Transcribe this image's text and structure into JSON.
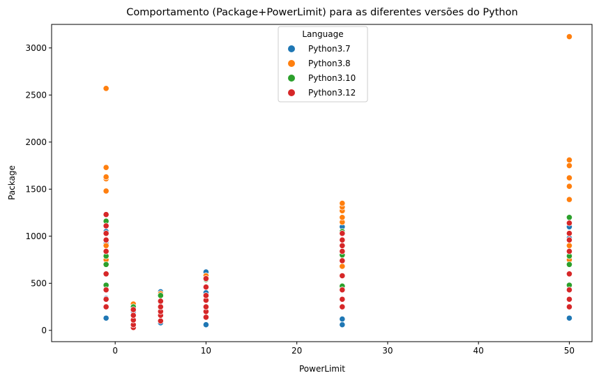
{
  "chart_data": {
    "type": "scatter",
    "title": "Comportamento (Package+PowerLimit) para as diferentes versões do Python",
    "xlabel": "PowerLimit",
    "ylabel": "Package",
    "xlim": [
      -7,
      52.5
    ],
    "ylim": [
      -120,
      3250
    ],
    "xticks": [
      0,
      10,
      20,
      30,
      40,
      50
    ],
    "yticks": [
      0,
      500,
      1000,
      1500,
      2000,
      2500,
      3000
    ],
    "grid": false,
    "legend": {
      "title": "Language",
      "placement": "top-center",
      "entries": [
        "Python3.7",
        "Python3.8",
        "Python3.10",
        "Python3.12"
      ]
    },
    "series": [
      {
        "name": "Python3.7",
        "color": "#1f77b4",
        "points": [
          [
            -1,
            130
          ],
          [
            -1,
            340
          ],
          [
            -1,
            920
          ],
          [
            -1,
            1050
          ],
          [
            -1,
            1150
          ],
          [
            2,
            60
          ],
          [
            2,
            120
          ],
          [
            2,
            200
          ],
          [
            2,
            270
          ],
          [
            5,
            80
          ],
          [
            5,
            180
          ],
          [
            5,
            300
          ],
          [
            5,
            410
          ],
          [
            10,
            60
          ],
          [
            10,
            250
          ],
          [
            10,
            400
          ],
          [
            10,
            620
          ],
          [
            25,
            60
          ],
          [
            25,
            120
          ],
          [
            25,
            460
          ],
          [
            25,
            960
          ],
          [
            25,
            1100
          ],
          [
            50,
            130
          ],
          [
            50,
            470
          ],
          [
            50,
            980
          ],
          [
            50,
            1100
          ]
        ]
      },
      {
        "name": "Python3.8",
        "color": "#ff7f0e",
        "points": [
          [
            -1,
            750
          ],
          [
            -1,
            900
          ],
          [
            -1,
            1480
          ],
          [
            -1,
            1610
          ],
          [
            -1,
            1630
          ],
          [
            -1,
            1730
          ],
          [
            -1,
            2570
          ],
          [
            2,
            280
          ],
          [
            5,
            390
          ],
          [
            10,
            580
          ],
          [
            25,
            680
          ],
          [
            25,
            1150
          ],
          [
            25,
            1200
          ],
          [
            25,
            1270
          ],
          [
            25,
            1310
          ],
          [
            25,
            1350
          ],
          [
            50,
            750
          ],
          [
            50,
            900
          ],
          [
            50,
            1390
          ],
          [
            50,
            1530
          ],
          [
            50,
            1620
          ],
          [
            50,
            1750
          ],
          [
            50,
            1810
          ],
          [
            50,
            3120
          ]
        ]
      },
      {
        "name": "Python3.10",
        "color": "#2ca02c",
        "points": [
          [
            -1,
            480
          ],
          [
            -1,
            700
          ],
          [
            -1,
            790
          ],
          [
            -1,
            1160
          ],
          [
            2,
            250
          ],
          [
            5,
            370
          ],
          [
            10,
            540
          ],
          [
            25,
            470
          ],
          [
            25,
            800
          ],
          [
            25,
            1050
          ],
          [
            50,
            480
          ],
          [
            50,
            700
          ],
          [
            50,
            790
          ],
          [
            50,
            1200
          ]
        ]
      },
      {
        "name": "Python3.12",
        "color": "#d62728",
        "points": [
          [
            -1,
            250
          ],
          [
            -1,
            330
          ],
          [
            -1,
            430
          ],
          [
            -1,
            600
          ],
          [
            -1,
            840
          ],
          [
            -1,
            960
          ],
          [
            -1,
            1030
          ],
          [
            -1,
            1110
          ],
          [
            -1,
            1230
          ],
          [
            2,
            30
          ],
          [
            2,
            60
          ],
          [
            2,
            110
          ],
          [
            2,
            160
          ],
          [
            2,
            220
          ],
          [
            5,
            100
          ],
          [
            5,
            160
          ],
          [
            5,
            200
          ],
          [
            5,
            250
          ],
          [
            5,
            310
          ],
          [
            10,
            140
          ],
          [
            10,
            200
          ],
          [
            10,
            250
          ],
          [
            10,
            320
          ],
          [
            10,
            370
          ],
          [
            10,
            460
          ],
          [
            10,
            550
          ],
          [
            25,
            250
          ],
          [
            25,
            330
          ],
          [
            25,
            430
          ],
          [
            25,
            580
          ],
          [
            25,
            740
          ],
          [
            25,
            840
          ],
          [
            25,
            900
          ],
          [
            25,
            960
          ],
          [
            25,
            1030
          ],
          [
            50,
            250
          ],
          [
            50,
            330
          ],
          [
            50,
            430
          ],
          [
            50,
            600
          ],
          [
            50,
            840
          ],
          [
            50,
            960
          ],
          [
            50,
            1030
          ],
          [
            50,
            1140
          ]
        ]
      }
    ]
  }
}
